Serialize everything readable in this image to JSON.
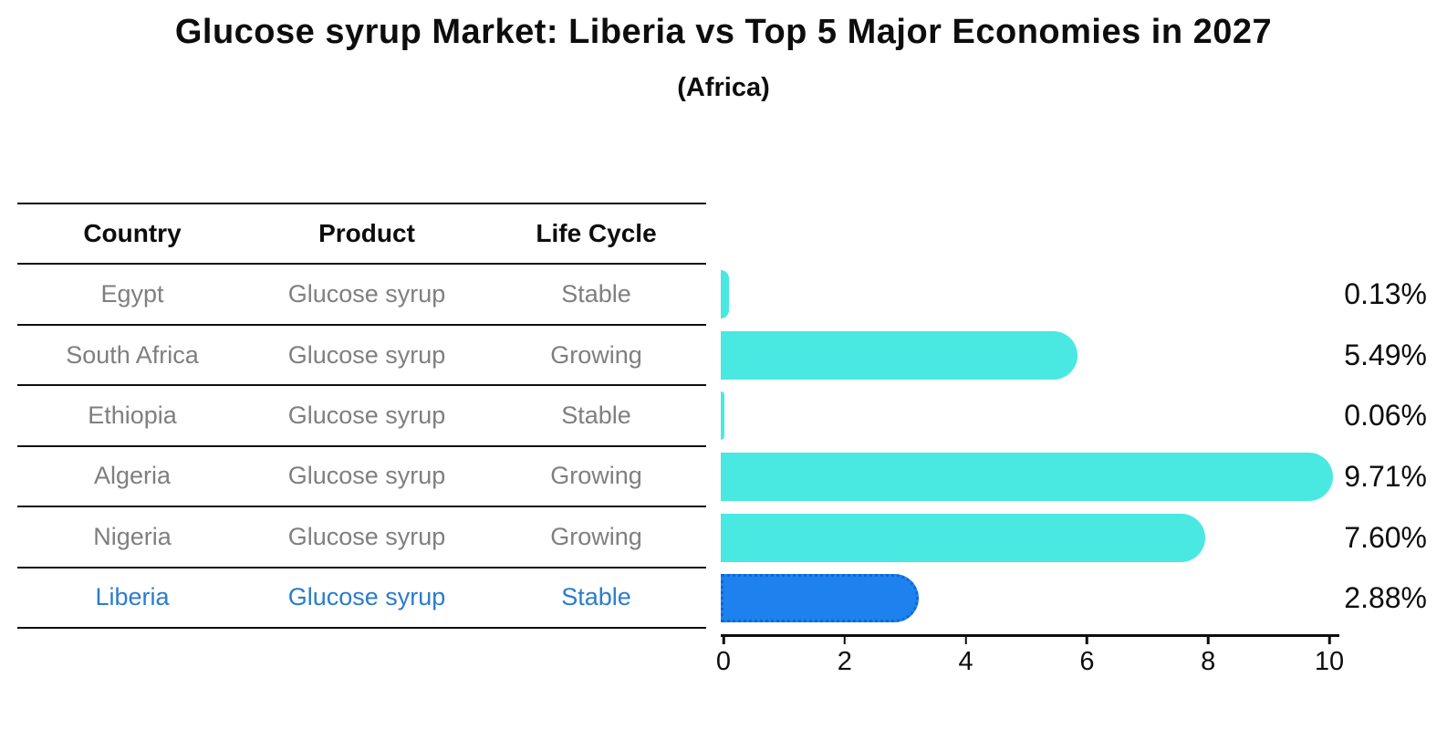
{
  "title": "Glucose syrup Market: Liberia vs Top 5 Major Economies in 2027",
  "subtitle": "(Africa)",
  "table": {
    "headers": [
      "Country",
      "Product",
      "Life Cycle"
    ],
    "rows": [
      {
        "country": "Egypt",
        "product": "Glucose syrup",
        "life_cycle": "Stable"
      },
      {
        "country": "South Africa",
        "product": "Glucose syrup",
        "life_cycle": "Growing"
      },
      {
        "country": "Ethiopia",
        "product": "Glucose syrup",
        "life_cycle": "Stable"
      },
      {
        "country": "Algeria",
        "product": "Glucose syrup",
        "life_cycle": "Growing"
      },
      {
        "country": "Nigeria",
        "product": "Glucose syrup",
        "life_cycle": "Growing"
      },
      {
        "country": "Liberia",
        "product": "Glucose syrup",
        "life_cycle": "Stable"
      }
    ]
  },
  "chart_data": {
    "type": "bar",
    "orientation": "horizontal",
    "title": "Glucose syrup Market: Liberia vs Top 5 Major Economies in 2027",
    "subtitle": "(Africa)",
    "categories": [
      "Egypt",
      "South Africa",
      "Ethiopia",
      "Algeria",
      "Nigeria",
      "Liberia"
    ],
    "values": [
      0.13,
      5.49,
      0.06,
      9.71,
      7.6,
      2.88
    ],
    "value_labels": [
      "0.13%",
      "5.49%",
      "0.06%",
      "9.71%",
      "7.60%",
      "2.88%"
    ],
    "xlabel": "",
    "ylabel": "",
    "xlim": [
      0,
      10
    ],
    "x_ticks": [
      0,
      2,
      4,
      6,
      8,
      10
    ],
    "grid": false,
    "legend": "none",
    "highlight_category": "Liberia",
    "bar_color": "#49e8e1",
    "highlight_bar_color": "#1e82ee",
    "highlight_border_color": "#0d66dd"
  },
  "colors": {
    "background": "#ffffff",
    "text_primary": "#0d0d0d",
    "table_text": "#7f7f7f",
    "highlight_text": "#2a7ccd",
    "line": "#0d0d0d"
  }
}
